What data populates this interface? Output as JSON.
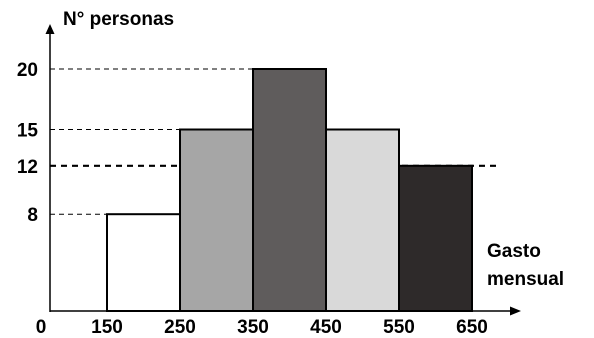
{
  "chart_data": {
    "type": "bar",
    "subtype": "histogram",
    "title": "",
    "ylabel": "N° personas",
    "xlabel_lines": [
      "Gasto",
      "mensual"
    ],
    "origin_label": "0",
    "bin_edges": [
      150,
      250,
      350,
      450,
      550,
      650
    ],
    "x_tick_labels": [
      "150",
      "250",
      "350",
      "450",
      "550",
      "650"
    ],
    "values": [
      8,
      15,
      20,
      15,
      12
    ],
    "bar_colors": [
      "#ffffff",
      "#a6a6a6",
      "#5f5c5c",
      "#d9d9d9",
      "#2e2a2a"
    ],
    "y_tick_labels": [
      "8",
      "12",
      "15",
      "20"
    ],
    "y_tick_values": [
      8,
      12,
      15,
      20
    ],
    "reference_lines": [
      {
        "value": 8,
        "style": "dashed"
      },
      {
        "value": 12,
        "style": "dashed-bold"
      },
      {
        "value": 15,
        "style": "dashed"
      },
      {
        "value": 20,
        "style": "dashed"
      }
    ],
    "ylim": [
      0,
      20
    ],
    "xlim": [
      0,
      650
    ],
    "grid": false,
    "legend": "none"
  }
}
